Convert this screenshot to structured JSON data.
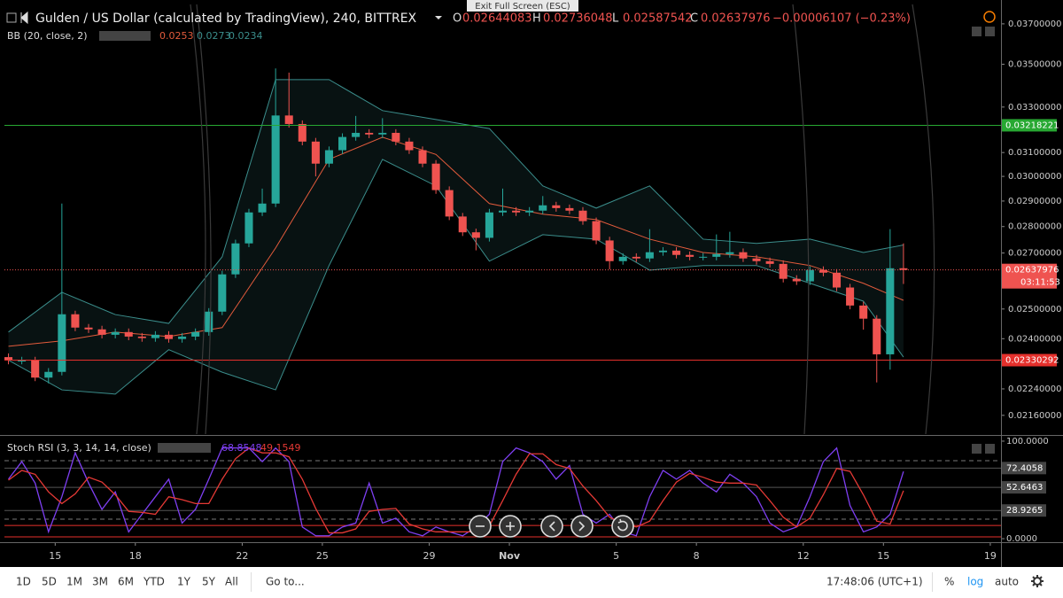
{
  "toolbar": {
    "title": "Gulden / US Dollar (calculated by TradingView), 240, BITTREX",
    "ohlc_letters": [
      "O",
      "H",
      "L",
      "C"
    ],
    "change_text": "−0.00006107 (−0.23%)",
    "bb_label": "BB (20, close, 2)",
    "stoch_label": "Stoch RSI (3, 3, 14, 14, close)",
    "tooltip": "Exit Full Screen (ESC)",
    "countdown": "03:11:53"
  },
  "footer": {
    "ranges": [
      "1D",
      "5D",
      "1M",
      "3M",
      "6M",
      "YTD",
      "1Y",
      "5Y",
      "All"
    ],
    "goto": "Go to...",
    "time": "17:48:06 (UTC+1)",
    "modes": [
      "%",
      "log",
      "auto"
    ]
  },
  "chart_data": [
    {
      "type": "candlestick",
      "log_scale": true,
      "up_color": "#26a69a",
      "down_color": "#ef5350",
      "x": [
        -1.75,
        -1.25,
        -0.75,
        -0.25,
        0.25,
        0.75,
        1.25,
        1.75,
        2.25,
        2.75,
        3.25,
        3.75,
        4.25,
        4.75,
        5.25,
        5.75,
        6.25,
        6.75,
        7.25,
        7.75,
        8.25,
        8.75,
        9.25,
        9.75,
        10.25,
        10.75,
        11.25,
        11.75,
        12.25,
        12.75,
        13.25,
        13.75,
        14.25,
        14.75,
        15.25,
        15.75,
        16.25,
        16.75,
        17.25,
        17.75,
        18.25,
        18.75,
        19.25,
        19.75,
        20.25,
        20.75,
        21.25,
        21.75,
        22.25,
        22.75,
        23.25,
        23.75,
        24.25,
        24.75,
        25.25,
        25.75,
        26.25,
        26.75,
        27.25,
        27.75,
        28.25,
        28.75,
        29.25,
        29.75,
        30.25,
        30.75,
        31.25,
        31.75
      ],
      "open": [
        0.0234,
        0.02329,
        0.02329,
        0.02275,
        0.02293,
        0.02482,
        0.02437,
        0.02431,
        0.02413,
        0.02422,
        0.02407,
        0.02402,
        0.02413,
        0.02399,
        0.02407,
        0.02422,
        0.02491,
        0.02622,
        0.02736,
        0.02855,
        0.0289,
        0.03262,
        0.03224,
        0.03147,
        0.03053,
        0.0311,
        0.03167,
        0.03185,
        0.03178,
        0.03185,
        0.03147,
        0.0311,
        0.03053,
        0.02944,
        0.02839,
        0.02778,
        0.02757,
        0.02855,
        0.02862,
        0.02855,
        0.02862,
        0.02883,
        0.02872,
        0.02862,
        0.02821,
        0.02747,
        0.0267,
        0.02686,
        0.0268,
        0.02703,
        0.02709,
        0.02693,
        0.02686,
        0.02686,
        0.02696,
        0.02703,
        0.0268,
        0.0267,
        0.0266,
        0.02606,
        0.02597,
        0.02638,
        0.02628,
        0.02575,
        0.02512,
        0.02467,
        0.02349,
        0.02644083
      ],
      "high": [
        0.02352,
        0.02341,
        0.02341,
        0.02305,
        0.0289,
        0.02494,
        0.02449,
        0.02443,
        0.02434,
        0.02434,
        0.02419,
        0.02425,
        0.02425,
        0.02419,
        0.02434,
        0.02503,
        0.02635,
        0.0275,
        0.02869,
        0.0295,
        0.0348,
        0.0346,
        0.0324,
        0.03163,
        0.03126,
        0.03183,
        0.0326,
        0.03201,
        0.0325,
        0.03201,
        0.03163,
        0.03126,
        0.03068,
        0.02959,
        0.02853,
        0.02792,
        0.02869,
        0.0295,
        0.02876,
        0.02876,
        0.0292,
        0.02897,
        0.02886,
        0.02876,
        0.02835,
        0.02761,
        0.02699,
        0.02699,
        0.0279,
        0.02722,
        0.02722,
        0.02706,
        0.027,
        0.0277,
        0.0278,
        0.02717,
        0.02693,
        0.02683,
        0.02673,
        0.02619,
        0.02651,
        0.02651,
        0.02641,
        0.02588,
        0.02525,
        0.02479,
        0.0279,
        0.02736048
      ],
      "low": [
        0.02317,
        0.02317,
        0.02264,
        0.02257,
        0.02282,
        0.02425,
        0.02419,
        0.02401,
        0.02401,
        0.02395,
        0.0239,
        0.0239,
        0.02387,
        0.02387,
        0.02395,
        0.0241,
        0.02479,
        0.02609,
        0.02722,
        0.02841,
        0.02876,
        0.03208,
        0.03131,
        0.03,
        0.03038,
        0.03094,
        0.03151,
        0.03162,
        0.03162,
        0.03131,
        0.03094,
        0.03038,
        0.02929,
        0.02825,
        0.02764,
        0.0271,
        0.02743,
        0.02841,
        0.02841,
        0.02841,
        0.02848,
        0.02858,
        0.02848,
        0.02807,
        0.02733,
        0.0264,
        0.02657,
        0.02667,
        0.02667,
        0.0269,
        0.0268,
        0.02673,
        0.02673,
        0.02673,
        0.02683,
        0.02667,
        0.02657,
        0.02647,
        0.02593,
        0.02584,
        0.02584,
        0.02615,
        0.02562,
        0.02499,
        0.0243,
        0.0226,
        0.023,
        0.02587542
      ],
      "close": [
        0.02329,
        0.02329,
        0.02275,
        0.02293,
        0.02482,
        0.02437,
        0.02431,
        0.02413,
        0.02422,
        0.02407,
        0.02402,
        0.02413,
        0.02399,
        0.02407,
        0.02422,
        0.02491,
        0.02622,
        0.02736,
        0.02855,
        0.0289,
        0.03262,
        0.03224,
        0.03147,
        0.03053,
        0.0311,
        0.03167,
        0.03185,
        0.03178,
        0.03185,
        0.03147,
        0.0311,
        0.03053,
        0.02944,
        0.02839,
        0.02778,
        0.02757,
        0.02855,
        0.02862,
        0.02855,
        0.02862,
        0.02883,
        0.02872,
        0.02862,
        0.02821,
        0.02747,
        0.0267,
        0.02686,
        0.0268,
        0.02703,
        0.02709,
        0.02693,
        0.02686,
        0.02686,
        0.02696,
        0.02703,
        0.0268,
        0.0267,
        0.0266,
        0.02606,
        0.02597,
        0.02638,
        0.02628,
        0.02575,
        0.02512,
        0.02467,
        0.02349,
        0.02644,
        0.02637976
      ],
      "xlim": [
        -1.9,
        35.4
      ],
      "xticks": [
        {
          "value": 0,
          "label": "15"
        },
        {
          "value": 3,
          "label": "18"
        },
        {
          "value": 7,
          "label": "22"
        },
        {
          "value": 10,
          "label": "25"
        },
        {
          "value": 14,
          "label": "29"
        },
        {
          "value": 17,
          "label": "Nov"
        },
        {
          "value": 21,
          "label": "5"
        },
        {
          "value": 24,
          "label": "8"
        },
        {
          "value": 28,
          "label": "12"
        },
        {
          "value": 31,
          "label": "15"
        },
        {
          "value": 35,
          "label": "19"
        }
      ],
      "ylim": [
        0.02105,
        0.038
      ],
      "yticks": [
        {
          "value": 0.037,
          "label": "0.03700000"
        },
        {
          "value": 0.035,
          "label": "0.03500000"
        },
        {
          "value": 0.033,
          "label": "0.03300000"
        },
        {
          "value": 0.031,
          "label": "0.03100000"
        },
        {
          "value": 0.03,
          "label": "0.03000000"
        },
        {
          "value": 0.029,
          "label": "0.02900000"
        },
        {
          "value": 0.028,
          "label": "0.02800000"
        },
        {
          "value": 0.027,
          "label": "0.02700000"
        },
        {
          "value": 0.025,
          "label": "0.02500000"
        },
        {
          "value": 0.024,
          "label": "0.02400000"
        },
        {
          "value": 0.0224,
          "label": "0.02240000"
        },
        {
          "value": 0.0216,
          "label": "0.02160000"
        }
      ],
      "bollinger": {
        "x": [
          -1.75,
          0.25,
          2.25,
          4.25,
          6.25,
          8.25,
          10.25,
          12.25,
          14.25,
          16.25,
          18.25,
          20.25,
          22.25,
          24.25,
          26.25,
          28.25,
          30.25,
          31.75
        ],
        "basis": [
          0.02375,
          0.02393,
          0.02422,
          0.02407,
          0.02437,
          0.02719,
          0.03071,
          0.03166,
          0.03092,
          0.0289,
          0.02848,
          0.02827,
          0.02752,
          0.02702,
          0.02686,
          0.02654,
          0.0259,
          0.0253
        ],
        "upper": [
          0.02422,
          0.02558,
          0.02481,
          0.02451,
          0.02686,
          0.03427,
          0.03427,
          0.03284,
          0.03244,
          0.03204,
          0.02961,
          0.02872,
          0.02961,
          0.02752,
          0.02736,
          0.02752,
          0.02702,
          0.0273
        ],
        "lower": [
          0.0233,
          0.02237,
          0.02224,
          0.02364,
          0.02292,
          0.02237,
          0.02654,
          0.03071,
          0.02961,
          0.0267,
          0.02769,
          0.02752,
          0.02637,
          0.02654,
          0.02654,
          0.0259,
          0.02527,
          0.0234
        ],
        "basis_color": "#e35b3c",
        "band_color": "#3b8e8c"
      },
      "levels": [
        {
          "value": 0.03218221,
          "color": "#27a832"
        },
        {
          "value": 0.02330292,
          "color": "#e5302c"
        }
      ]
    },
    {
      "type": "line",
      "x": [
        -1.75,
        -1.25,
        -0.75,
        -0.25,
        0.25,
        0.75,
        1.25,
        1.75,
        2.25,
        2.75,
        3.25,
        3.75,
        4.25,
        4.75,
        5.25,
        5.75,
        6.25,
        6.75,
        7.25,
        7.75,
        8.25,
        8.75,
        9.25,
        9.75,
        10.25,
        10.75,
        11.25,
        11.75,
        12.25,
        12.75,
        13.25,
        13.75,
        14.25,
        14.75,
        15.25,
        15.75,
        16.25,
        16.75,
        17.25,
        17.75,
        18.25,
        18.75,
        19.25,
        19.75,
        20.25,
        20.75,
        21.25,
        21.75,
        22.25,
        22.75,
        23.25,
        23.75,
        24.25,
        24.75,
        25.25,
        25.75,
        26.25,
        26.75,
        27.25,
        27.75,
        28.25,
        28.75,
        29.25,
        29.75,
        30.25,
        30.75,
        31.25,
        31.75
      ],
      "xlim": [
        -1.9,
        35.4
      ],
      "ylim": [
        -3.6,
        104.5
      ],
      "yticks": [
        {
          "value": 100,
          "label": "100.0000"
        },
        72.4058,
        52.6463,
        28.9265,
        {
          "value": 0,
          "label": "0.0000"
        }
      ],
      "band_lines": [
        80,
        20
      ],
      "level_lines": [
        {
          "value": 13.5,
          "color": "#e5302c"
        },
        {
          "value": 1.8,
          "color": "#e5302c"
        }
      ],
      "series": [
        {
          "color": "#7e3ff2",
          "values": [
            61,
            79,
            57,
            7,
            43,
            88,
            57,
            30,
            48,
            7,
            25,
            43,
            61,
            16,
            30,
            61,
            93,
            93,
            93,
            79,
            93,
            79,
            12,
            3,
            3,
            12,
            16,
            57,
            16,
            21,
            7,
            3,
            12,
            7,
            3,
            12,
            25,
            79,
            93,
            88,
            79,
            61,
            75,
            25,
            16,
            25,
            7,
            3,
            43,
            70,
            61,
            70,
            57,
            48,
            66,
            57,
            43,
            16,
            7,
            12,
            43,
            79,
            93,
            34,
            7,
            12,
            25,
            68.8548
          ]
        },
        {
          "color": "#e53935",
          "values": [
            60,
            70,
            66,
            48,
            36,
            46,
            63,
            58,
            45,
            28,
            27,
            25,
            43,
            40,
            36,
            36,
            61,
            82,
            93,
            88,
            88,
            84,
            61,
            31,
            6,
            6,
            10,
            28,
            30,
            31,
            15,
            10,
            7,
            7,
            7,
            7,
            13,
            39,
            66,
            87,
            87,
            76,
            72,
            54,
            39,
            22,
            16,
            12,
            18,
            39,
            58,
            67,
            63,
            58,
            57,
            57,
            55,
            39,
            22,
            12,
            21,
            45,
            72,
            69,
            45,
            18,
            15,
            49.1549
          ]
        }
      ]
    }
  ]
}
